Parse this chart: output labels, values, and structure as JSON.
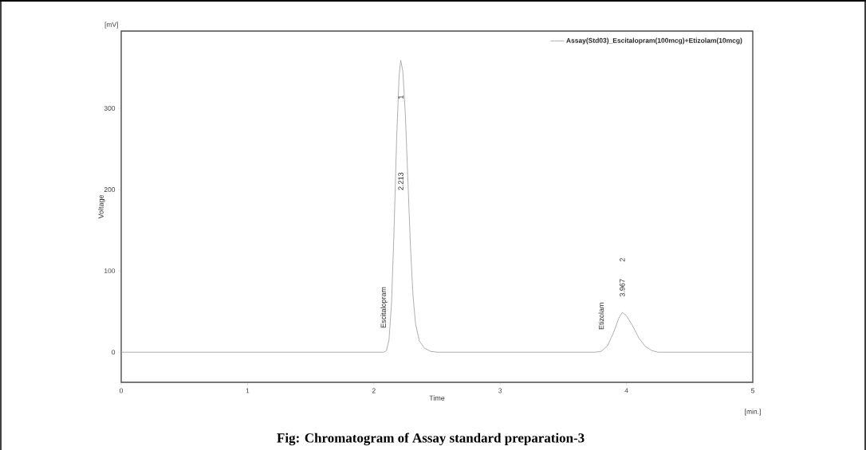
{
  "chart_data": {
    "type": "line",
    "xlabel": "Time",
    "ylabel": "Voltage",
    "x": [
      0,
      1.9,
      2.08,
      2.1,
      2.12,
      2.14,
      2.16,
      2.18,
      2.2,
      2.213,
      2.23,
      2.25,
      2.27,
      2.29,
      2.31,
      2.33,
      2.36,
      2.4,
      2.45,
      2.5,
      3.75,
      3.8,
      3.85,
      3.9,
      3.94,
      3.967,
      4.0,
      4.05,
      4.1,
      4.15,
      4.2,
      4.25,
      5
    ],
    "series": [
      {
        "name": "Assay(Std03)_Escitalopram(100mcg)+Etizolam(10mcg)",
        "color": "#9a9a9a",
        "values": [
          0,
          0,
          0,
          2,
          15,
          60,
          150,
          260,
          340,
          359,
          345,
          290,
          210,
          130,
          70,
          35,
          14,
          5,
          1,
          0,
          0,
          1,
          8,
          25,
          42,
          49,
          45,
          32,
          17,
          7,
          2,
          0,
          0
        ]
      }
    ],
    "xlim": [
      0,
      5
    ],
    "ylim": [
      -37,
      395
    ],
    "xticks": [
      0,
      1,
      2,
      3,
      4,
      5
    ],
    "yticks": [
      0,
      100,
      200,
      300
    ],
    "legend": "top right",
    "grid": false,
    "marker": "none",
    "line_style": "solid",
    "annotations": [
      "[mV]",
      "[min.]",
      "Fig: Chromatogram of Assay standard preparation-3",
      {
        "text": "Escitalopram",
        "x": 2.08,
        "y": 10
      },
      "2.213",
      "1",
      {
        "text": "Etizolam",
        "x": 3.8,
        "y": 8
      },
      "3.967",
      "2"
    ]
  }
}
